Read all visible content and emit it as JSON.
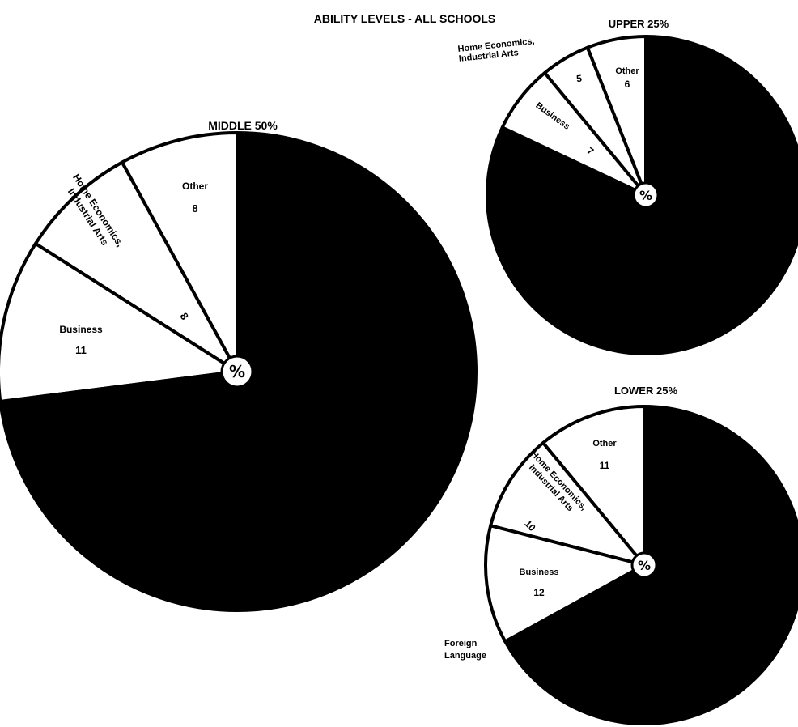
{
  "title": "ABILITY LEVELS - ALL SCHOOLS",
  "center_symbol": "%",
  "colors": {
    "background": "#ffffff",
    "dark_slice": "#000000",
    "light_slice": "#ffffff",
    "ink": "#000000"
  },
  "chart_data": [
    {
      "type": "pie",
      "title": "MIDDLE 50%",
      "slices": [
        {
          "label": "Other",
          "value": 8
        },
        {
          "label": "Home Economics, Industrial Arts",
          "value": 8
        },
        {
          "label": "Business",
          "value": 11
        },
        {
          "label": "",
          "value": 73
        }
      ]
    },
    {
      "type": "pie",
      "title": "UPPER 25%",
      "slices": [
        {
          "label": "Other",
          "value": 6
        },
        {
          "label": "Home Economics, Industrial Arts",
          "value": 5
        },
        {
          "label": "Business",
          "value": 7
        },
        {
          "label": "",
          "value": 82
        }
      ]
    },
    {
      "type": "pie",
      "title": "LOWER 25%",
      "slices": [
        {
          "label": "Other",
          "value": 11
        },
        {
          "label": "Home Economics, Industrial Arts",
          "value": 10
        },
        {
          "label": "Business",
          "value": 12
        },
        {
          "label": "Foreign Language",
          "value": 67
        }
      ]
    }
  ]
}
